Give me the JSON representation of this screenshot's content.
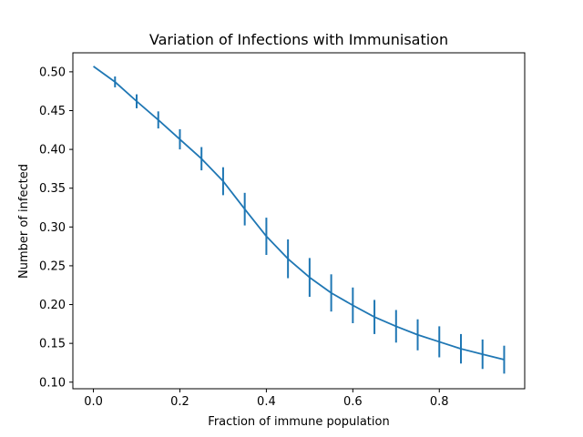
{
  "chart_data": {
    "type": "line",
    "title": "Variation of Infections with Immunisation",
    "xlabel": "Fraction of immune population",
    "ylabel": "Number of infected",
    "xlim": [
      -0.0475,
      0.9975
    ],
    "ylim": [
      0.0915,
      0.5245
    ],
    "xticks": [
      0.0,
      0.2,
      0.4,
      0.6,
      0.8
    ],
    "xtick_labels": [
      "0.0",
      "0.2",
      "0.4",
      "0.6",
      "0.8"
    ],
    "yticks": [
      0.1,
      0.15,
      0.2,
      0.25,
      0.3,
      0.35,
      0.4,
      0.45,
      0.5
    ],
    "ytick_labels": [
      "0.10",
      "0.15",
      "0.20",
      "0.25",
      "0.30",
      "0.35",
      "0.40",
      "0.45",
      "0.50"
    ],
    "grid": false,
    "series": [
      {
        "color": "#1f77b4",
        "x": [
          0.0,
          0.05,
          0.1,
          0.15,
          0.2,
          0.25,
          0.3,
          0.35,
          0.4,
          0.45,
          0.5,
          0.55,
          0.6,
          0.65,
          0.7,
          0.75,
          0.8,
          0.85,
          0.9,
          0.95
        ],
        "y": [
          0.507,
          0.487,
          0.462,
          0.438,
          0.413,
          0.388,
          0.359,
          0.323,
          0.288,
          0.259,
          0.235,
          0.215,
          0.199,
          0.184,
          0.172,
          0.161,
          0.152,
          0.143,
          0.136,
          0.129
        ],
        "yerr": [
          0.0,
          0.007,
          0.009,
          0.011,
          0.013,
          0.015,
          0.018,
          0.021,
          0.024,
          0.025,
          0.025,
          0.024,
          0.023,
          0.022,
          0.021,
          0.02,
          0.02,
          0.019,
          0.019,
          0.018
        ]
      }
    ]
  }
}
